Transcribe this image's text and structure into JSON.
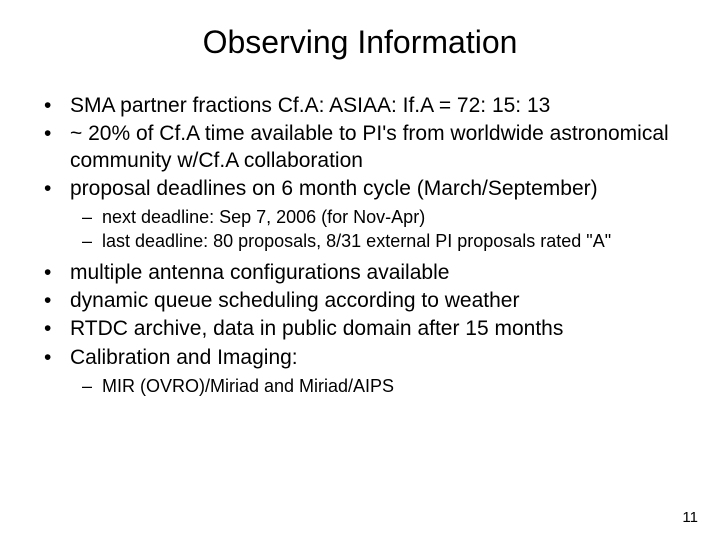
{
  "title": "Observing Information",
  "bullets": {
    "b1": "SMA partner fractions Cf.A: ASIAA: If.A = 72: 15: 13",
    "b2": "~ 20% of Cf.A time available to PI's from worldwide astronomical community w/Cf.A collaboration",
    "b3": "proposal deadlines on 6 month cycle (March/September)",
    "b3_sub1": "next deadline: Sep 7, 2006 (for Nov-Apr)",
    "b3_sub2": "last deadline: 80 proposals, 8/31 external PI proposals rated \"A\"",
    "b4": "multiple antenna configurations available",
    "b5": "dynamic queue scheduling according to weather",
    "b6": "RTDC archive, data in public domain after 15 months",
    "b7": "Calibration and Imaging:",
    "b7_sub1": "MIR (OVRO)/Miriad and Miriad/AIPS"
  },
  "page_number": "11",
  "styling": {
    "background_color": "#ffffff",
    "text_color": "#000000",
    "title_fontsize": 32,
    "bullet_fontsize": 21,
    "sub_bullet_fontsize": 18,
    "page_number_fontsize": 15,
    "font_family": "Arial"
  }
}
